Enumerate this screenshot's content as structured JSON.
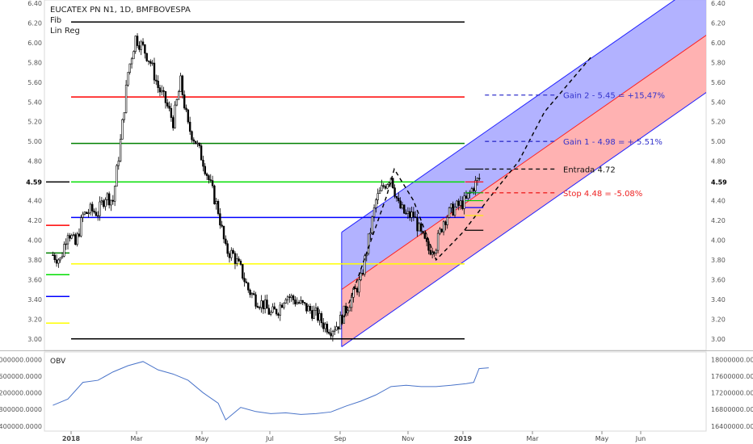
{
  "header": {
    "symbol_line": "EUCATEX PN N1, 1D, BMFBOVESPA",
    "indicator_1": "Fib",
    "indicator_2": "Lin Reg"
  },
  "oscillator": {
    "name": "OBV"
  },
  "colors": {
    "candle": "#000000",
    "fib_black": "#000000",
    "fib_red": "#ff0000",
    "fib_green": "#008000",
    "fib_lime": "#00dd00",
    "fib_blue": "#0000ff",
    "fib_yellow": "#ffff00",
    "channel_upper_fill": "#aaaaff",
    "channel_lower_fill": "#ffaaaa",
    "channel_line": "#2222ff",
    "channel_mid": "#ff2222",
    "obv_line": "#4a74c9",
    "gain_text": "#3333cc",
    "stop_text": "#ee2222"
  },
  "chart_data": [
    {
      "type": "candlestick",
      "title": "EUCATEX PN N1, 1D, BMFBOVESPA",
      "x_ticks": [
        "2018",
        "Mar",
        "May",
        "Jul",
        "Sep",
        "Nov",
        "2019",
        "Mar",
        "May",
        "Jun"
      ],
      "y_ticks": [
        "6.40",
        "6.20",
        "6.00",
        "5.80",
        "5.60",
        "5.40",
        "5.20",
        "5.00",
        "4.80",
        "4.59",
        "4.40",
        "4.20",
        "4.00",
        "3.80",
        "3.60",
        "3.40",
        "3.20",
        "3.00"
      ],
      "ylim": [
        2.9,
        6.4
      ],
      "grid": false,
      "last_price": "4.59",
      "price_path": [
        [
          "2017-12-15",
          3.85
        ],
        [
          "2017-12-22",
          3.8
        ],
        [
          "2017-12-29",
          4.1
        ],
        [
          "2018-01-05",
          3.95
        ],
        [
          "2018-01-12",
          4.25
        ],
        [
          "2018-01-19",
          4.3
        ],
        [
          "2018-01-26",
          4.28
        ],
        [
          "2018-02-02",
          4.45
        ],
        [
          "2018-02-09",
          4.4
        ],
        [
          "2018-02-16",
          5.0
        ],
        [
          "2018-02-23",
          5.7
        ],
        [
          "2018-03-02",
          6.05
        ],
        [
          "2018-03-09",
          5.95
        ],
        [
          "2018-03-16",
          5.8
        ],
        [
          "2018-03-23",
          5.55
        ],
        [
          "2018-03-30",
          5.4
        ],
        [
          "2018-04-06",
          5.2
        ],
        [
          "2018-04-13",
          5.6
        ],
        [
          "2018-04-20",
          5.15
        ],
        [
          "2018-04-27",
          5.0
        ],
        [
          "2018-05-04",
          4.8
        ],
        [
          "2018-05-11",
          4.55
        ],
        [
          "2018-05-18",
          4.3
        ],
        [
          "2018-05-25",
          3.9
        ],
        [
          "2018-06-01",
          3.85
        ],
        [
          "2018-06-08",
          3.7
        ],
        [
          "2018-06-15",
          3.5
        ],
        [
          "2018-06-22",
          3.4
        ],
        [
          "2018-06-29",
          3.35
        ],
        [
          "2018-07-06",
          3.25
        ],
        [
          "2018-07-13",
          3.3
        ],
        [
          "2018-07-20",
          3.45
        ],
        [
          "2018-07-27",
          3.4
        ],
        [
          "2018-08-03",
          3.35
        ],
        [
          "2018-08-10",
          3.3
        ],
        [
          "2018-08-17",
          3.25
        ],
        [
          "2018-08-24",
          3.15
        ],
        [
          "2018-08-31",
          3.1
        ],
        [
          "2018-09-07",
          3.15
        ],
        [
          "2018-09-14",
          3.3
        ],
        [
          "2018-09-21",
          3.45
        ],
        [
          "2018-09-28",
          3.6
        ],
        [
          "2018-10-05",
          4.0
        ],
        [
          "2018-10-12",
          4.4
        ],
        [
          "2018-10-19",
          4.55
        ],
        [
          "2018-10-26",
          4.65
        ],
        [
          "2018-11-02",
          4.35
        ],
        [
          "2018-11-09",
          4.25
        ],
        [
          "2018-11-16",
          4.25
        ],
        [
          "2018-11-23",
          4.05
        ],
        [
          "2018-11-30",
          3.9
        ],
        [
          "2018-12-07",
          3.95
        ],
        [
          "2018-12-14",
          4.2
        ],
        [
          "2018-12-21",
          4.3
        ],
        [
          "2018-12-28",
          4.35
        ],
        [
          "2019-01-04",
          4.4
        ],
        [
          "2019-01-11",
          4.55
        ],
        [
          "2019-01-18",
          4.65
        ]
      ],
      "fib_levels": [
        {
          "price": 6.21,
          "color": "#000000"
        },
        {
          "price": 5.45,
          "color": "#ff0000"
        },
        {
          "price": 4.98,
          "color": "#008000"
        },
        {
          "price": 4.59,
          "color": "#00dd00"
        },
        {
          "price": 4.23,
          "color": "#0000ff"
        },
        {
          "price": 3.76,
          "color": "#ffff00"
        },
        {
          "price": 3.0,
          "color": "#000000"
        }
      ],
      "fib_left_markers": [
        {
          "price": 4.59,
          "color": "#000000"
        },
        {
          "price": 4.15,
          "color": "#ff0000"
        },
        {
          "price": 3.87,
          "color": "#008000"
        },
        {
          "price": 3.65,
          "color": "#00dd00"
        },
        {
          "price": 3.43,
          "color": "#0000ff"
        },
        {
          "price": 3.16,
          "color": "#ffff00"
        }
      ],
      "regression_channel": {
        "start_date": "2018-09-10",
        "end_date": "2019-09-01",
        "mid_start": 3.5,
        "mid_end": 6.2,
        "offset": 0.58
      },
      "annotations": [
        {
          "text": "Gain 2 - 5.45 = +15,47%",
          "price": 5.47,
          "color": "#3333cc"
        },
        {
          "text": "Gain 1 - 4.98 = + 5.51%",
          "price": 5.0,
          "color": "#3333cc"
        },
        {
          "text": "Entrada 4.72",
          "price": 4.72,
          "color": "#111111"
        },
        {
          "text": "Stop 4.48 = -5.08%",
          "price": 4.48,
          "color": "#ee2222"
        }
      ],
      "projection_path": [
        [
          "2018-09-10",
          3.15
        ],
        [
          "2018-10-22",
          4.45
        ],
        [
          "2018-10-29",
          4.72
        ],
        [
          "2018-11-16",
          4.4
        ],
        [
          "2018-12-07",
          3.8
        ],
        [
          "2019-01-01",
          4.08
        ],
        [
          "2019-01-25",
          4.42
        ],
        [
          "2019-02-22",
          4.8
        ],
        [
          "2019-03-18",
          5.3
        ],
        [
          "2019-04-30",
          5.85
        ]
      ]
    },
    {
      "type": "line",
      "title": "OBV",
      "y_ticks": [
        "18000000.0000",
        "17600000.0000",
        "17200000.0000",
        "16800000.0000",
        "16400000.0000"
      ],
      "ylim": [
        16320000,
        18160000
      ],
      "series": [
        {
          "points": [
            [
              "2017-12-15",
              16900000
            ],
            [
              "2017-12-29",
              17050000
            ],
            [
              "2018-01-12",
              17450000
            ],
            [
              "2018-01-26",
              17500000
            ],
            [
              "2018-02-09",
              17700000
            ],
            [
              "2018-02-23",
              17850000
            ],
            [
              "2018-03-09",
              17950000
            ],
            [
              "2018-03-23",
              17750000
            ],
            [
              "2018-04-06",
              17650000
            ],
            [
              "2018-04-20",
              17500000
            ],
            [
              "2018-05-04",
              17200000
            ],
            [
              "2018-05-18",
              16950000
            ],
            [
              "2018-05-25",
              16550000
            ],
            [
              "2018-06-08",
              16850000
            ],
            [
              "2018-06-22",
              16750000
            ],
            [
              "2018-07-06",
              16700000
            ],
            [
              "2018-07-20",
              16720000
            ],
            [
              "2018-08-03",
              16680000
            ],
            [
              "2018-08-17",
              16700000
            ],
            [
              "2018-08-31",
              16740000
            ],
            [
              "2018-09-14",
              16880000
            ],
            [
              "2018-09-28",
              17000000
            ],
            [
              "2018-10-12",
              17150000
            ],
            [
              "2018-10-26",
              17350000
            ],
            [
              "2018-11-09",
              17380000
            ],
            [
              "2018-11-23",
              17350000
            ],
            [
              "2018-12-07",
              17350000
            ],
            [
              "2018-12-21",
              17380000
            ],
            [
              "2019-01-04",
              17420000
            ],
            [
              "2019-01-11",
              17450000
            ],
            [
              "2019-01-16",
              17780000
            ],
            [
              "2019-01-25",
              17800000
            ]
          ]
        }
      ]
    }
  ]
}
